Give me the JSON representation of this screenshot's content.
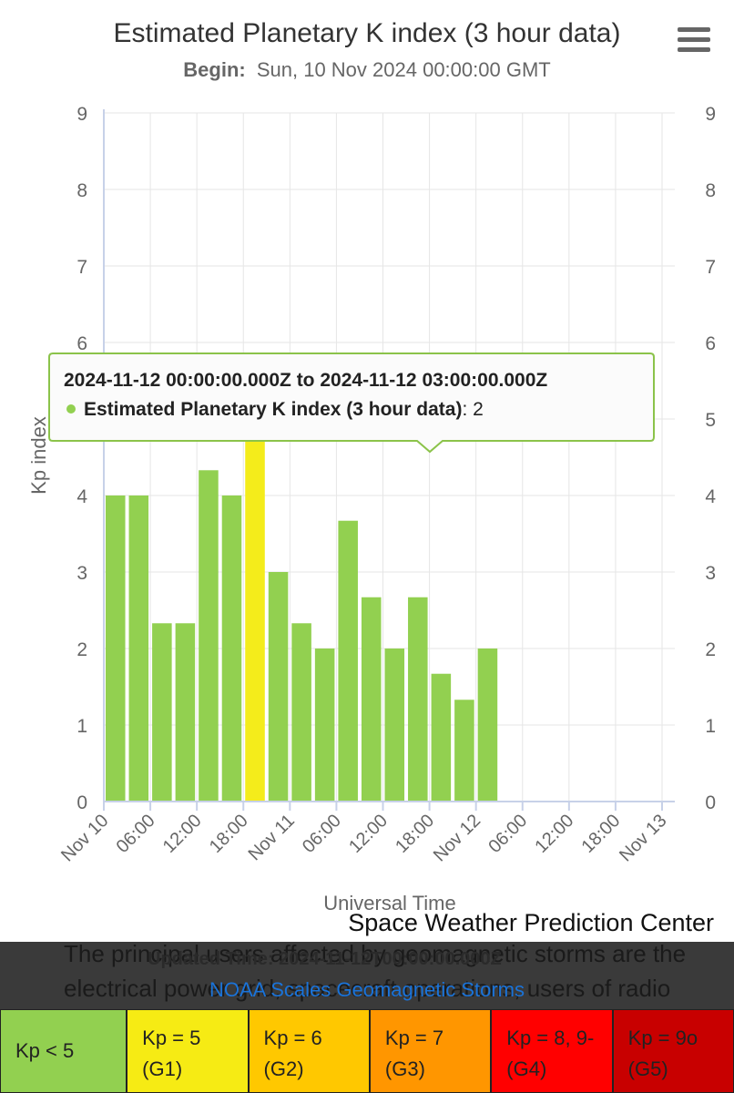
{
  "chart_data": {
    "type": "bar",
    "title": "Estimated Planetary K index (3 hour data)",
    "subtitle_label": "Begin:",
    "subtitle_value": "Sun, 10 Nov 2024 00:00:00 GMT",
    "xlabel": "Universal Time",
    "ylabel": "Kp index",
    "ylim": [
      0,
      9
    ],
    "yticks": [
      "0",
      "1",
      "2",
      "3",
      "4",
      "5",
      "6",
      "7",
      "8",
      "9"
    ],
    "xticks": [
      "Nov 10",
      "06:00",
      "12:00",
      "18:00",
      "Nov 11",
      "06:00",
      "12:00",
      "18:00",
      "Nov 12",
      "06:00",
      "12:00",
      "18:00",
      "Nov 13"
    ],
    "grid": true,
    "series": [
      {
        "values": [
          4.0,
          4.0,
          2.33,
          2.33,
          4.33,
          4.0,
          5.33,
          3.0,
          2.33,
          2.0,
          3.67,
          2.67,
          2.0,
          2.67,
          1.67,
          1.33,
          2.0
        ],
        "colors": [
          "#92d050",
          "#92d050",
          "#92d050",
          "#92d050",
          "#92d050",
          "#92d050",
          "#f4ec1b",
          "#92d050",
          "#92d050",
          "#92d050",
          "#92d050",
          "#92d050",
          "#92d050",
          "#92d050",
          "#92d050",
          "#92d050",
          "#92d050"
        ]
      }
    ],
    "tooltip": {
      "header": "2024-11-12 00:00:00.000Z to 2024-11-12 03:00:00.000Z",
      "series_name": "Estimated Planetary K index (3 hour data)",
      "value": "2"
    },
    "credit": "Space Weather Prediction Center"
  },
  "colors": {
    "green": "#92d050",
    "yellow": "#f4ec1b",
    "tooltip_border": "#8bc34a",
    "axis": "#c7d1e8",
    "grid": "#e6e6e6"
  },
  "footer": {
    "background_text": "The principal users affected by geomagnetic storms are the electrical power grid, spacecraft operations, users of radio signals that reflect off",
    "updated_text": "Updated Time: 2024-11-12T00:00:00.000Z",
    "scales_link": "NOAA Scales Geomagnetic Storms",
    "legend": [
      {
        "label": "Kp < 5",
        "sub": "",
        "color": "#92d050"
      },
      {
        "label": "Kp = 5",
        "sub": "(G1)",
        "color": "#f6eb14"
      },
      {
        "label": "Kp = 6",
        "sub": "(G2)",
        "color": "#ffc800"
      },
      {
        "label": "Kp = 7",
        "sub": "(G3)",
        "color": "#ff9600"
      },
      {
        "label": "Kp = 8, 9-",
        "sub": "(G4)",
        "color": "#ff0000"
      },
      {
        "label": "Kp = 9o",
        "sub": "(G5)",
        "color": "#c80000"
      }
    ]
  },
  "menu_icon": "hamburger-menu-icon"
}
